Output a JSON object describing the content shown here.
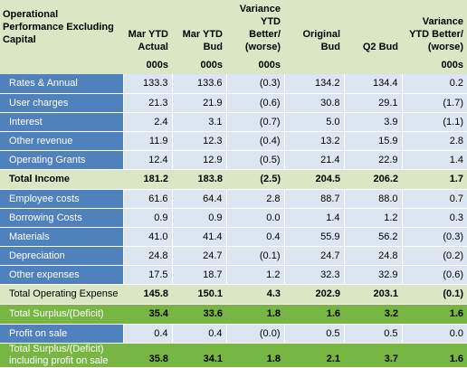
{
  "header": {
    "title": "Operational Performance Excluding Capital",
    "columns": [
      "Mar YTD Actual",
      "Mar YTD Bud",
      "Variance YTD Better/ (worse)",
      "Original Bud",
      "Q2 Bud",
      "Variance YTD Better/ (worse)"
    ],
    "units": [
      "000s",
      "000s",
      "000s",
      "",
      "",
      "000s"
    ]
  },
  "rows": {
    "rates": {
      "label": "Rates & Annual",
      "values": [
        "133.3",
        "133.6",
        "(0.3)",
        "134.2",
        "134.4",
        "0.2"
      ]
    },
    "user_charges": {
      "label": "User charges",
      "values": [
        "21.3",
        "21.9",
        "(0.6)",
        "30.8",
        "29.1",
        "(1.7)"
      ]
    },
    "interest": {
      "label": "Interest",
      "values": [
        "2.4",
        "3.1",
        "(0.7)",
        "5.0",
        "3.9",
        "(1.1)"
      ]
    },
    "other_revenue": {
      "label": "Other revenue",
      "values": [
        "11.9",
        "12.3",
        "(0.4)",
        "13.2",
        "15.9",
        "2.8"
      ]
    },
    "operating_grants": {
      "label": "Operating Grants",
      "values": [
        "12.4",
        "12.9",
        "(0.5)",
        "21.4",
        "22.9",
        "1.4"
      ]
    },
    "total_income": {
      "label": "Total Income",
      "values": [
        "181.2",
        "183.8",
        "(2.5)",
        "204.5",
        "206.2",
        "1.7"
      ]
    },
    "employee_costs": {
      "label": "Employee costs",
      "values": [
        "61.6",
        "64.4",
        "2.8",
        "88.7",
        "88.0",
        "0.7"
      ]
    },
    "borrowing_costs": {
      "label": "Borrowing Costs",
      "values": [
        "0.9",
        "0.9",
        "0.0",
        "1.4",
        "1.2",
        "0.3"
      ]
    },
    "materials": {
      "label": "Materials",
      "values": [
        "41.0",
        "41.4",
        "0.4",
        "55.9",
        "56.2",
        "(0.3)"
      ]
    },
    "depreciation": {
      "label": "Depreciation",
      "values": [
        "24.8",
        "24.7",
        "(0.1)",
        "24.7",
        "24.8",
        "(0.2)"
      ]
    },
    "other_expenses": {
      "label": "Other expenses",
      "values": [
        "17.5",
        "18.7",
        "1.2",
        "32.3",
        "32.9",
        "(0.6)"
      ]
    },
    "total_operating_expense": {
      "label": "Total Operating Expense",
      "values": [
        "145.8",
        "150.1",
        "4.3",
        "202.9",
        "203.1",
        "(0.1)"
      ]
    },
    "total_surplus": {
      "label": "Total Surplus/(Deficit)",
      "values": [
        "35.4",
        "33.6",
        "1.8",
        "1.6",
        "3.2",
        "1.6"
      ]
    },
    "profit_on_sale": {
      "label": "Profit on sale",
      "values": [
        "0.4",
        "0.4",
        "(0.0)",
        "0.5",
        "0.5",
        "0.0"
      ]
    },
    "total_surplus_incl": {
      "label": "Total Surplus/(Deficit) including profit on sale",
      "values": [
        "35.8",
        "34.1",
        "1.8",
        "2.1",
        "3.7",
        "1.6"
      ]
    }
  },
  "colors": {
    "header_bg": "#dbe6c4",
    "label_blue": "#4f81bd",
    "value_light_blue": "#dce6f2",
    "surplus_green": "#77b643"
  }
}
